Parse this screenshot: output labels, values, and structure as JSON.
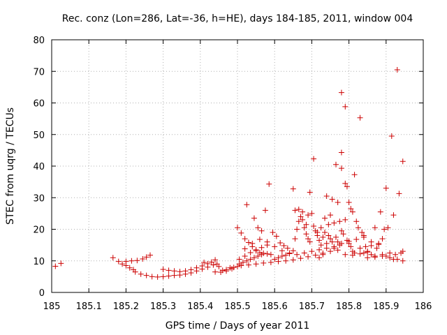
{
  "chart_data": {
    "type": "scatter",
    "title": "Rec. conz (Lon=286, Lat=-36, h=HE), days 184-185, 2011, window 004",
    "xlabel": "GPS time / Days of year 2011",
    "ylabel": "STEC from uqrg / TECUs",
    "xlim": [
      185,
      186
    ],
    "ylim": [
      0,
      80
    ],
    "x_ticks": [
      "185",
      "185.1",
      "185.2",
      "185.3",
      "185.4",
      "185.5",
      "185.6",
      "185.7",
      "185.8",
      "185.9",
      "186"
    ],
    "y_ticks": [
      "0",
      "10",
      "20",
      "30",
      "40",
      "50",
      "60",
      "70",
      "80"
    ],
    "grid": true,
    "marker": "+",
    "color": "#cc0000",
    "points": [
      [
        185.01,
        8.3
      ],
      [
        185.025,
        9.2
      ],
      [
        185.165,
        11.0
      ],
      [
        185.18,
        9.8
      ],
      [
        185.19,
        9.0
      ],
      [
        185.2,
        8.5
      ],
      [
        185.21,
        7.8
      ],
      [
        185.22,
        7.2
      ],
      [
        185.2,
        9.8
      ],
      [
        185.215,
        10.0
      ],
      [
        185.23,
        10.1
      ],
      [
        185.245,
        10.6
      ],
      [
        185.255,
        11.2
      ],
      [
        185.265,
        11.8
      ],
      [
        185.225,
        6.5
      ],
      [
        185.24,
        5.8
      ],
      [
        185.255,
        5.4
      ],
      [
        185.27,
        5.0
      ],
      [
        185.285,
        4.9
      ],
      [
        185.3,
        5.0
      ],
      [
        185.315,
        5.2
      ],
      [
        185.33,
        5.4
      ],
      [
        185.345,
        5.5
      ],
      [
        185.36,
        5.8
      ],
      [
        185.375,
        6.2
      ],
      [
        185.39,
        6.8
      ],
      [
        185.405,
        7.4
      ],
      [
        185.42,
        8.0
      ],
      [
        185.435,
        8.7
      ],
      [
        185.3,
        7.3
      ],
      [
        185.315,
        7.0
      ],
      [
        185.33,
        6.8
      ],
      [
        185.345,
        6.6
      ],
      [
        185.36,
        6.8
      ],
      [
        185.375,
        7.2
      ],
      [
        185.39,
        7.8
      ],
      [
        185.405,
        8.4
      ],
      [
        185.42,
        9.1
      ],
      [
        185.43,
        9.6
      ],
      [
        185.44,
        10.3
      ],
      [
        185.45,
        8.2
      ],
      [
        185.46,
        7.0
      ],
      [
        185.47,
        7.2
      ],
      [
        185.48,
        7.8
      ],
      [
        185.49,
        7.9
      ],
      [
        185.44,
        6.5
      ],
      [
        185.455,
        6.4
      ],
      [
        185.47,
        6.8
      ],
      [
        185.485,
        7.5
      ],
      [
        185.5,
        8.2
      ],
      [
        185.41,
        9.5
      ],
      [
        185.445,
        9.0
      ],
      [
        185.5,
        20.5
      ],
      [
        185.51,
        18.8
      ],
      [
        185.52,
        17.0
      ],
      [
        185.53,
        15.8
      ],
      [
        185.54,
        14.5
      ],
      [
        185.55,
        13.2
      ],
      [
        185.56,
        12.6
      ],
      [
        185.57,
        12.4
      ],
      [
        185.58,
        12.2
      ],
      [
        185.59,
        12.0
      ],
      [
        185.525,
        27.8
      ],
      [
        185.545,
        23.5
      ],
      [
        185.555,
        20.5
      ],
      [
        185.565,
        19.5
      ],
      [
        185.575,
        26.0
      ],
      [
        185.585,
        34.3
      ],
      [
        185.595,
        19.0
      ],
      [
        185.605,
        17.8
      ],
      [
        185.615,
        15.7
      ],
      [
        185.625,
        14.8
      ],
      [
        185.635,
        14.0
      ],
      [
        185.505,
        9.0
      ],
      [
        185.515,
        9.5
      ],
      [
        185.525,
        10.0
      ],
      [
        185.535,
        10.5
      ],
      [
        185.545,
        11.0
      ],
      [
        185.555,
        11.5
      ],
      [
        185.565,
        12.0
      ],
      [
        185.505,
        10.5
      ],
      [
        185.52,
        11.5
      ],
      [
        185.535,
        12.6
      ],
      [
        185.55,
        13.5
      ],
      [
        185.565,
        14.2
      ],
      [
        185.58,
        15.0
      ],
      [
        185.51,
        8.5
      ],
      [
        185.53,
        8.7
      ],
      [
        185.55,
        9.0
      ],
      [
        185.57,
        9.3
      ],
      [
        185.59,
        9.5
      ],
      [
        185.61,
        9.8
      ],
      [
        185.63,
        10.0
      ],
      [
        185.65,
        10.3
      ],
      [
        185.67,
        10.8
      ],
      [
        185.69,
        11.3
      ],
      [
        185.71,
        11.8
      ],
      [
        185.73,
        12.4
      ],
      [
        185.75,
        13.0
      ],
      [
        185.77,
        13.4
      ],
      [
        185.79,
        12.0
      ],
      [
        185.81,
        11.8
      ],
      [
        185.83,
        12.2
      ],
      [
        185.85,
        12.8
      ],
      [
        185.87,
        11.5
      ],
      [
        185.89,
        11.5
      ],
      [
        185.91,
        11.0
      ],
      [
        185.93,
        10.5
      ],
      [
        185.945,
        10.0
      ],
      [
        185.52,
        13.8
      ],
      [
        185.54,
        15.5
      ],
      [
        185.56,
        16.8
      ],
      [
        185.58,
        16.0
      ],
      [
        185.6,
        14.5
      ],
      [
        185.62,
        13.2
      ],
      [
        185.64,
        12.5
      ],
      [
        185.66,
        12.0
      ],
      [
        185.68,
        12.5
      ],
      [
        185.7,
        13.0
      ],
      [
        185.72,
        13.5
      ],
      [
        185.74,
        14.0
      ],
      [
        185.76,
        14.5
      ],
      [
        185.78,
        15.5
      ],
      [
        185.8,
        16.2
      ],
      [
        185.82,
        16.8
      ],
      [
        185.84,
        17.5
      ],
      [
        185.86,
        16.0
      ],
      [
        185.88,
        15.2
      ],
      [
        185.6,
        10.5
      ],
      [
        185.61,
        11.0
      ],
      [
        185.62,
        11.5
      ],
      [
        185.63,
        11.8
      ],
      [
        185.64,
        12.3
      ],
      [
        185.65,
        13.2
      ],
      [
        185.655,
        17.0
      ],
      [
        185.66,
        20.0
      ],
      [
        185.665,
        22.5
      ],
      [
        185.67,
        24.0
      ],
      [
        185.675,
        25.5
      ],
      [
        185.68,
        20.5
      ],
      [
        185.685,
        18.5
      ],
      [
        185.69,
        17.0
      ],
      [
        185.695,
        16.0
      ],
      [
        185.65,
        32.8
      ],
      [
        185.655,
        26.0
      ],
      [
        185.665,
        26.3
      ],
      [
        185.675,
        23.0
      ],
      [
        185.685,
        21.5
      ],
      [
        185.69,
        24.5
      ],
      [
        185.695,
        31.7
      ],
      [
        185.7,
        25.0
      ],
      [
        185.705,
        21.0
      ],
      [
        185.71,
        19.5
      ],
      [
        185.715,
        18.0
      ],
      [
        185.72,
        16.5
      ],
      [
        185.725,
        15.0
      ],
      [
        185.705,
        42.3
      ],
      [
        185.715,
        19.0
      ],
      [
        185.725,
        20.5
      ],
      [
        185.735,
        23.5
      ],
      [
        185.74,
        30.5
      ],
      [
        185.745,
        21.5
      ],
      [
        185.75,
        24.5
      ],
      [
        185.755,
        29.5
      ],
      [
        185.76,
        22.0
      ],
      [
        185.765,
        40.5
      ],
      [
        185.77,
        28.5
      ],
      [
        185.775,
        22.5
      ],
      [
        185.78,
        44.3
      ],
      [
        185.78,
        39.3
      ],
      [
        185.78,
        63.3
      ],
      [
        185.79,
        58.8
      ],
      [
        185.79,
        34.5
      ],
      [
        185.795,
        33.5
      ],
      [
        185.8,
        28.5
      ],
      [
        185.805,
        26.5
      ],
      [
        185.81,
        25.5
      ],
      [
        185.815,
        37.3
      ],
      [
        185.82,
        22.5
      ],
      [
        185.825,
        20.5
      ],
      [
        185.765,
        17.5
      ],
      [
        185.77,
        16.0
      ],
      [
        185.775,
        15.0
      ],
      [
        185.78,
        19.5
      ],
      [
        185.785,
        18.5
      ],
      [
        185.79,
        23.0
      ],
      [
        185.795,
        16.5
      ],
      [
        185.8,
        15.5
      ],
      [
        185.805,
        14.5
      ],
      [
        185.81,
        13.0
      ],
      [
        185.815,
        12.5
      ],
      [
        185.83,
        55.3
      ],
      [
        185.835,
        19.0
      ],
      [
        185.84,
        18.0
      ],
      [
        185.845,
        14.5
      ],
      [
        185.85,
        13.0
      ],
      [
        185.86,
        12.0
      ],
      [
        185.87,
        20.5
      ],
      [
        185.875,
        14.0
      ],
      [
        185.88,
        15.5
      ],
      [
        185.885,
        25.5
      ],
      [
        185.89,
        17.0
      ],
      [
        185.895,
        20.0
      ],
      [
        185.9,
        33.0
      ],
      [
        185.905,
        20.5
      ],
      [
        185.91,
        12.5
      ],
      [
        185.915,
        49.5
      ],
      [
        185.92,
        24.5
      ],
      [
        185.925,
        12.0
      ],
      [
        185.93,
        70.5
      ],
      [
        185.935,
        31.3
      ],
      [
        185.94,
        12.5
      ],
      [
        185.945,
        41.5
      ],
      [
        185.945,
        13.0
      ],
      [
        185.73,
        17.5
      ],
      [
        185.735,
        19.0
      ],
      [
        185.745,
        18.0
      ],
      [
        185.755,
        16.0
      ],
      [
        185.76,
        14.0
      ],
      [
        185.72,
        11.0
      ],
      [
        185.73,
        12.0
      ],
      [
        185.74,
        15.5
      ],
      [
        185.75,
        17.0
      ],
      [
        185.83,
        14.0
      ],
      [
        185.84,
        12.5
      ],
      [
        185.85,
        11.0
      ],
      [
        185.86,
        14.8
      ],
      [
        185.87,
        11.2
      ],
      [
        185.89,
        12.0
      ],
      [
        185.9,
        11.5
      ],
      [
        185.92,
        10.5
      ]
    ]
  }
}
